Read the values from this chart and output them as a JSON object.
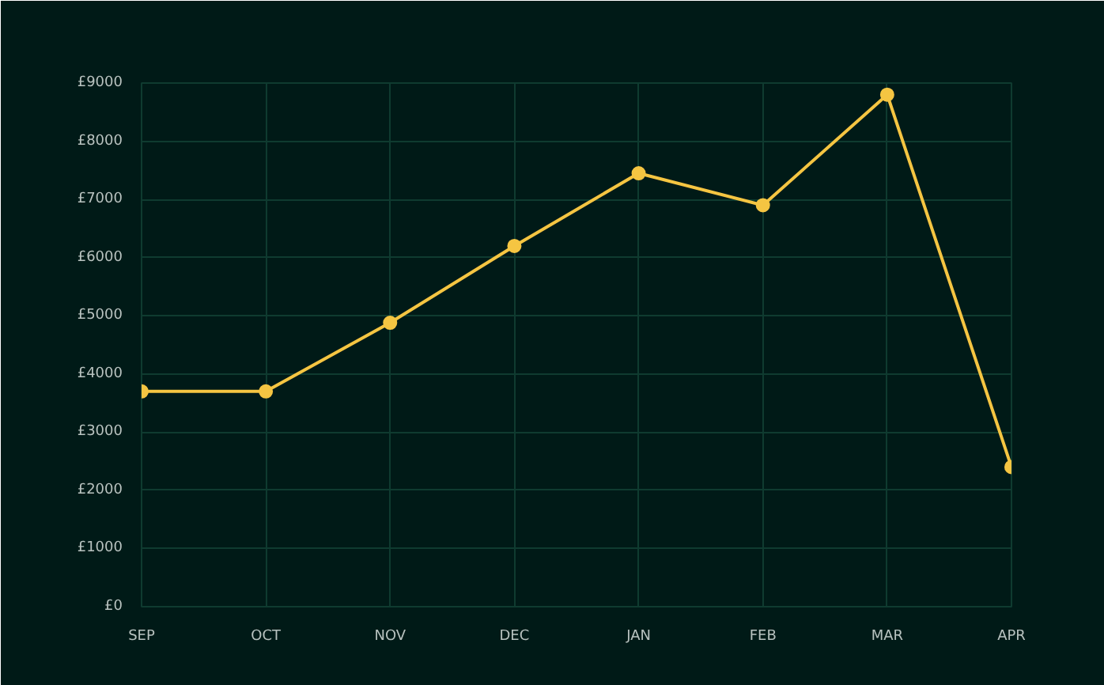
{
  "chart_data": {
    "type": "line",
    "categories": [
      "SEP",
      "OCT",
      "NOV",
      "DEC",
      "JAN",
      "FEB",
      "MAR",
      "APR"
    ],
    "series": [
      {
        "color": "#f5c542",
        "values": [
          3700,
          3700,
          4880,
          6200,
          7450,
          6900,
          8800,
          2400
        ]
      }
    ],
    "ylim": [
      0,
      9000
    ],
    "yticks": [
      {
        "value": 0,
        "label": "£0"
      },
      {
        "value": 1000,
        "label": "£1000"
      },
      {
        "value": 2000,
        "label": "£2000"
      },
      {
        "value": 3000,
        "label": "£3000"
      },
      {
        "value": 4000,
        "label": "£4000"
      },
      {
        "value": 5000,
        "label": "£5000"
      },
      {
        "value": 6000,
        "label": "£6000"
      },
      {
        "value": 7000,
        "label": "£7000"
      },
      {
        "value": 8000,
        "label": "£8000"
      },
      {
        "value": 9000,
        "label": "£9000"
      }
    ],
    "grid": true,
    "marker": "circle",
    "line_style": "solid"
  }
}
